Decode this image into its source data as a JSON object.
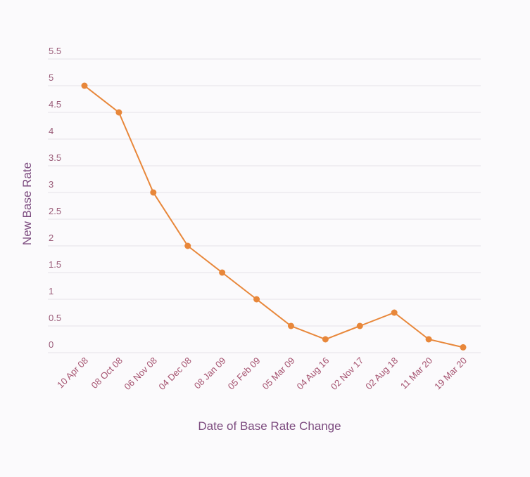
{
  "chart_data": {
    "type": "line",
    "title": "",
    "xlabel": "Date of Base Rate Change",
    "ylabel": "New Base Rate",
    "categories": [
      "10 Apr 08",
      "08 Oct 08",
      "06 Nov 08",
      "04 Dec 08",
      "08 Jan 09",
      "05 Feb 09",
      "05 Mar 09",
      "04 Aug 16",
      "02 Nov 17",
      "02 Aug 18",
      "11 Mar 20",
      "19 Mar 20"
    ],
    "series": [
      {
        "name": "New Base Rate",
        "values": [
          5,
          4.5,
          3,
          2,
          1.5,
          1,
          0.5,
          0.25,
          0.5,
          0.75,
          0.25,
          0.1
        ]
      }
    ],
    "yticks": [
      "0",
      "0.5",
      "1",
      "1.5",
      "2",
      "2.5",
      "3",
      "3.5",
      "4",
      "4.5",
      "5",
      "5.5"
    ],
    "ylim": [
      0,
      5.5
    ],
    "grid": true,
    "legend": "none",
    "colors": {
      "line": "#e8873a",
      "text": "#9a5b78",
      "grid": "#e6e3e8"
    }
  }
}
